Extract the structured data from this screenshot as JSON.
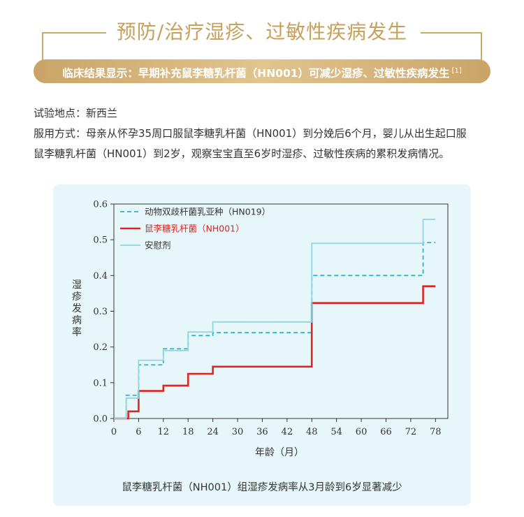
{
  "header": {
    "title": "预防/治疗湿疹、过敏性疾病发生",
    "banner_text": "临床结果显示：早期补充鼠李糖乳杆菌（HN001）可减少湿疹、过敏性疾病发生",
    "banner_ref": "[1]"
  },
  "info": {
    "line1": "试验地点：新西兰",
    "line2": "服用方式：母亲从怀孕35周口服鼠李糖乳杆菌（HN001）到分娩后6个月，婴儿从出生起口服",
    "line3": "鼠李糖乳杆菌（HN001）到2岁，观察宝宝直至6岁时湿疹、过敏性疾病的累积发病情况。"
  },
  "chart_data": {
    "type": "line",
    "title": "",
    "xlabel": "年龄（月）",
    "ylabel": "湿疹发病率",
    "xlim": [
      0,
      81
    ],
    "ylim": [
      0,
      0.6
    ],
    "xticks": [
      0,
      6,
      12,
      18,
      24,
      30,
      36,
      42,
      48,
      54,
      60,
      66,
      72,
      78
    ],
    "yticks": [
      0.0,
      0.1,
      0.2,
      0.3,
      0.4,
      0.5,
      0.6
    ],
    "step": true,
    "legend_position": "top-left",
    "series": [
      {
        "name": "动物双歧杆菌乳亚种（HN019）",
        "color": "#2bb3c8",
        "style": "dashed",
        "x": [
          0,
          3,
          6,
          12,
          18,
          24,
          48,
          75,
          78
        ],
        "y": [
          0.0,
          0.065,
          0.15,
          0.195,
          0.232,
          0.24,
          0.4,
          0.492,
          0.492
        ]
      },
      {
        "name": "鼠李糖乳杆菌（NH001）",
        "color": "#e02424",
        "style": "solid",
        "x": [
          0,
          3.5,
          6,
          12,
          18,
          24,
          48,
          75,
          78
        ],
        "y": [
          0.0,
          0.02,
          0.077,
          0.092,
          0.125,
          0.145,
          0.323,
          0.37,
          0.37
        ]
      },
      {
        "name": "安慰剂",
        "color": "#8fd6e4",
        "style": "solid",
        "x": [
          0,
          3,
          6,
          12,
          18,
          24,
          48,
          75,
          78
        ],
        "y": [
          0.0,
          0.057,
          0.163,
          0.19,
          0.242,
          0.27,
          0.49,
          0.557,
          0.557
        ]
      }
    ]
  },
  "caption": "鼠李糖乳杆菌（NH001）组湿疹发病率从3月龄到6岁显著减少"
}
